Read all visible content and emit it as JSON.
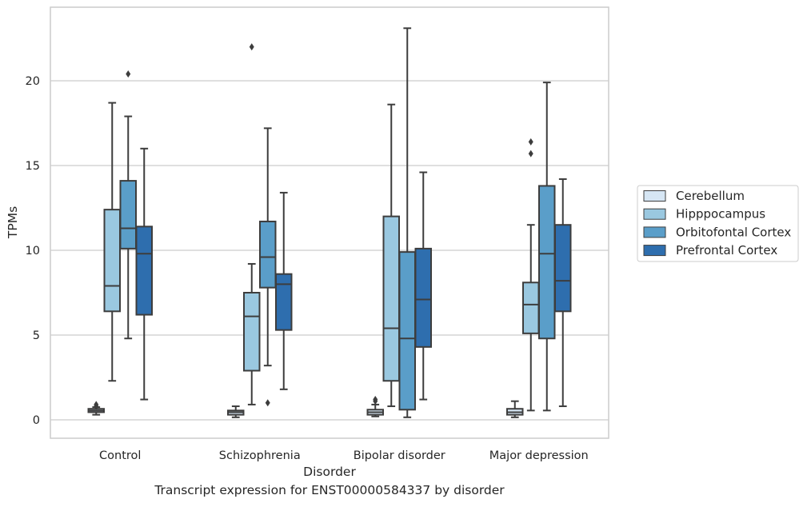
{
  "caption": "Transcript expression for ENST00000584337 by disorder",
  "chart_data": {
    "type": "box",
    "xlabel": "Disorder",
    "ylabel": "TPMs",
    "ylim": [
      -1,
      24.4
    ],
    "yticks": [
      0,
      5,
      10,
      15,
      20
    ],
    "grid": "horizontal",
    "legend_position": "right",
    "categories": [
      "Control",
      "Schizophrenia",
      "Bipolar disorder",
      "Major depression"
    ],
    "series": [
      {
        "name": "Cerebellum",
        "color": "#d6e6f4",
        "boxes": [
          {
            "whisker_low": 0.3,
            "q1": 0.45,
            "median": 0.55,
            "q3": 0.65,
            "whisker_high": 0.75,
            "outliers": [
              0.8,
              0.9
            ]
          },
          {
            "whisker_low": 0.15,
            "q1": 0.3,
            "median": 0.45,
            "q3": 0.55,
            "whisker_high": 0.8,
            "outliers": []
          },
          {
            "whisker_low": 0.2,
            "q1": 0.3,
            "median": 0.45,
            "q3": 0.6,
            "whisker_high": 0.9,
            "outliers": [
              1.1,
              1.2
            ]
          },
          {
            "whisker_low": 0.15,
            "q1": 0.3,
            "median": 0.45,
            "q3": 0.65,
            "whisker_high": 1.1,
            "outliers": []
          }
        ]
      },
      {
        "name": "Hipppocampus",
        "color": "#9ac8e0",
        "boxes": [
          {
            "whisker_low": 2.3,
            "q1": 6.4,
            "median": 7.9,
            "q3": 12.4,
            "whisker_high": 18.7,
            "outliers": []
          },
          {
            "whisker_low": 0.9,
            "q1": 2.9,
            "median": 6.1,
            "q3": 7.5,
            "whisker_high": 9.2,
            "outliers": [
              22.0
            ]
          },
          {
            "whisker_low": 0.8,
            "q1": 2.3,
            "median": 5.4,
            "q3": 12.0,
            "whisker_high": 18.6,
            "outliers": []
          },
          {
            "whisker_low": 0.55,
            "q1": 5.1,
            "median": 6.8,
            "q3": 8.1,
            "whisker_high": 11.5,
            "outliers": [
              15.7,
              16.4
            ]
          }
        ]
      },
      {
        "name": "Orbitofontal Cortex",
        "color": "#5a9ec9",
        "boxes": [
          {
            "whisker_low": 4.8,
            "q1": 10.1,
            "median": 11.3,
            "q3": 14.1,
            "whisker_high": 17.9,
            "outliers": [
              20.4
            ]
          },
          {
            "whisker_low": 3.2,
            "q1": 7.8,
            "median": 9.6,
            "q3": 11.7,
            "whisker_high": 17.2,
            "outliers": [
              1.0
            ]
          },
          {
            "whisker_low": 0.15,
            "q1": 0.6,
            "median": 4.8,
            "q3": 9.9,
            "whisker_high": 23.1,
            "outliers": []
          },
          {
            "whisker_low": 0.55,
            "q1": 4.8,
            "median": 9.8,
            "q3": 13.8,
            "whisker_high": 19.9,
            "outliers": []
          }
        ]
      },
      {
        "name": "Prefrontal Cortex",
        "color": "#2e6eae",
        "boxes": [
          {
            "whisker_low": 1.2,
            "q1": 6.2,
            "median": 9.8,
            "q3": 11.4,
            "whisker_high": 16.0,
            "outliers": []
          },
          {
            "whisker_low": 1.8,
            "q1": 5.3,
            "median": 8.0,
            "q3": 8.6,
            "whisker_high": 13.4,
            "outliers": []
          },
          {
            "whisker_low": 1.2,
            "q1": 4.3,
            "median": 7.1,
            "q3": 10.1,
            "whisker_high": 14.6,
            "outliers": []
          },
          {
            "whisker_low": 0.8,
            "q1": 6.4,
            "median": 8.2,
            "q3": 11.5,
            "whisker_high": 14.2,
            "outliers": []
          }
        ]
      }
    ]
  }
}
